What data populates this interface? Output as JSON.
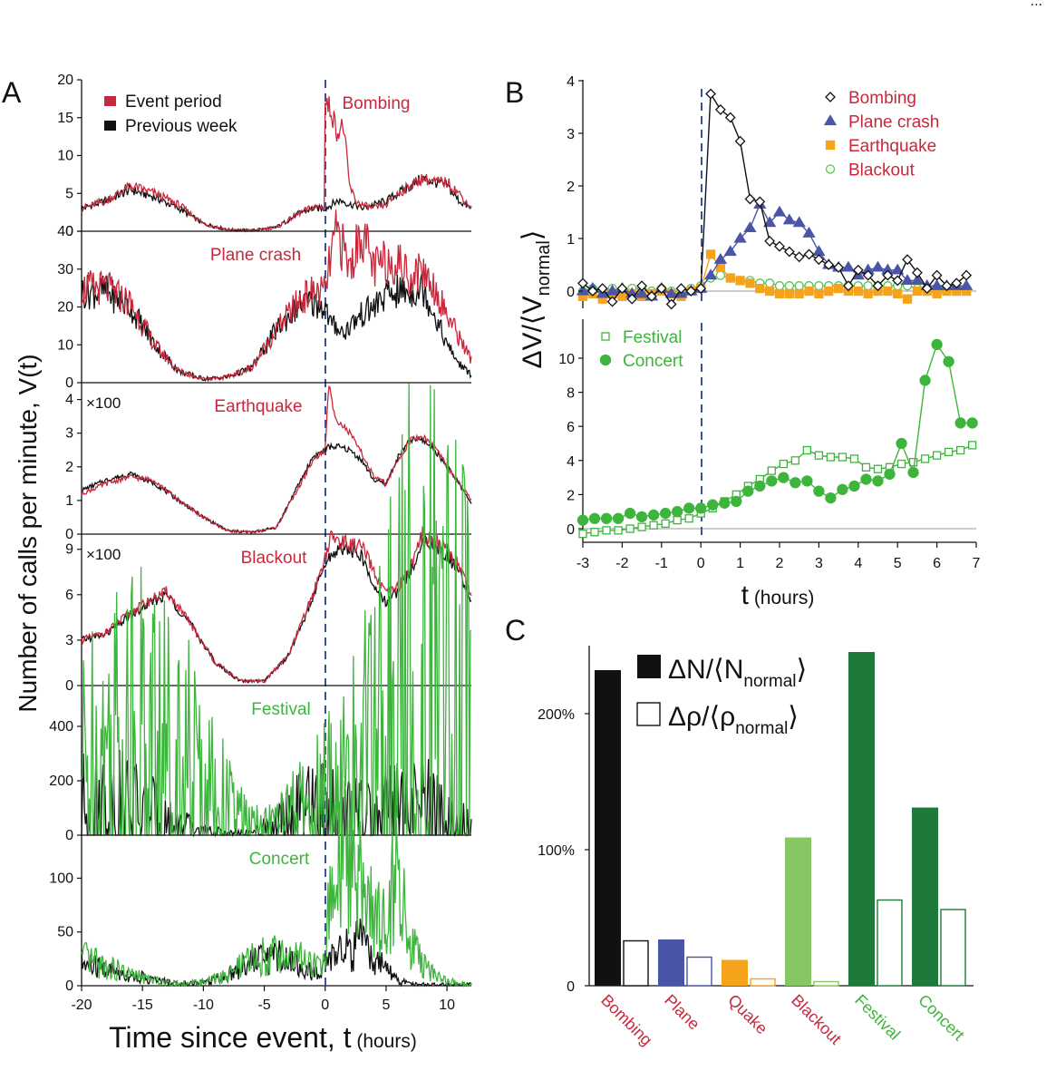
{
  "corner_text": "...",
  "panel_labels": {
    "a": "A",
    "b": "B",
    "c": "C"
  },
  "panel_a": {
    "ylabel": "Number of calls per minute, V(t)",
    "xlabel_main": "Time since event, t",
    "xlabel_unit": " (hours)",
    "x_ticks": [
      "-20",
      "-15",
      "-10",
      "-5",
      "0",
      "5",
      "10"
    ],
    "legend": {
      "event": "Event period",
      "previous": "Previous week"
    },
    "multiplier": "×100",
    "rows": [
      {
        "label": "Bombing",
        "label_color": "red",
        "ymax": 20,
        "ticks": [
          "0",
          "5",
          "10",
          "15",
          "20"
        ],
        "multiplier": false
      },
      {
        "label": "Plane crash",
        "label_color": "red",
        "ymax": 40,
        "ticks": [
          "0",
          "10",
          "20",
          "30",
          "40"
        ],
        "multiplier": false
      },
      {
        "label": "Earthquake",
        "label_color": "red",
        "ymax": 4.5,
        "ticks": [
          "0",
          "1",
          "2",
          "3",
          "4"
        ],
        "multiplier": true
      },
      {
        "label": "Blackout",
        "label_color": "red",
        "ymax": 10,
        "ticks": [
          "0",
          "3",
          "6",
          "9"
        ],
        "multiplier": true
      },
      {
        "label": "Festival",
        "label_color": "green",
        "ymax": 550,
        "ticks": [
          "0",
          "200",
          "400"
        ],
        "multiplier": false
      },
      {
        "label": "Concert",
        "label_color": "green",
        "ymax": 140,
        "ticks": [
          "0",
          "50",
          "100"
        ],
        "multiplier": false
      }
    ]
  },
  "panel_b": {
    "ylabel": "ΔV/⟨V",
    "ylabel_sub": "normal",
    "ylabel_close": "⟩",
    "xlabel_main": "t",
    "xlabel_unit": " (hours)",
    "x_ticks": [
      "-3",
      "-2",
      "-1",
      "0",
      "1",
      "2",
      "3",
      "4",
      "5",
      "6",
      "7"
    ],
    "top_ticks": [
      "0",
      "1",
      "2",
      "3",
      "4"
    ],
    "bottom_ticks": [
      "0",
      "2",
      "4",
      "6",
      "8",
      "10"
    ],
    "legend_top": [
      "Bombing",
      "Plane crash",
      "Earthquake",
      "Blackout"
    ],
    "legend_bottom": [
      "Festival",
      "Concert"
    ]
  },
  "panel_c": {
    "y_ticks": [
      "0",
      "100%",
      "200%"
    ],
    "legend_n": "ΔN/⟨N",
    "legend_n_sub": "normal",
    "legend_rho": "Δρ/⟨ρ",
    "legend_rho_sub": "normal",
    "legend_close": "⟩",
    "categories": [
      "Bombing",
      "Plane",
      "Quake",
      "Blackout",
      "Festival",
      "Concert"
    ]
  },
  "colors": {
    "red": "#c8283c",
    "black": "#111111",
    "green": "#3db53d",
    "blue": "#4a55a8",
    "orange": "#f5a31a",
    "light_green": "#55c455",
    "dark_green": "#1e7a3a",
    "bar_light_green": "#86c764",
    "dashed": "#3a50a0"
  },
  "chart_data": [
    {
      "type": "line",
      "panel": "A",
      "xlabel": "Time since event, t (hours)",
      "ylabel": "Number of calls per minute, V(t)",
      "xlim": [
        -20,
        12
      ],
      "event_time": 0,
      "series_names": [
        "Event period",
        "Previous week"
      ],
      "rows": [
        {
          "event": "Bombing",
          "ylim": [
            0,
            20
          ],
          "x": [
            -20,
            -18,
            -16,
            -14,
            -12,
            -10,
            -8,
            -6,
            -4,
            -2,
            -1,
            -0.05,
            0,
            0.5,
            1,
            1.5,
            2,
            2.5,
            3,
            4,
            5,
            6,
            7,
            8,
            9,
            10,
            11,
            12
          ],
          "event_period": [
            3,
            4,
            6,
            5,
            3.5,
            1,
            0.2,
            0.1,
            0.5,
            2.5,
            3.2,
            3.2,
            17,
            16,
            13,
            14,
            6,
            4,
            3.5,
            3,
            3.5,
            5,
            6,
            7,
            6.5,
            6.5,
            5,
            3
          ],
          "previous_week": [
            3,
            4,
            5.5,
            4.5,
            3,
            1,
            0.2,
            0.1,
            0.5,
            2.5,
            3,
            3,
            3,
            3.5,
            4,
            4,
            3.5,
            3.5,
            3,
            3.5,
            4,
            5,
            6,
            7,
            6.5,
            6,
            4,
            3
          ]
        },
        {
          "event": "Plane crash",
          "ylim": [
            0,
            40
          ],
          "x": [
            -20,
            -18,
            -16,
            -14,
            -12,
            -10,
            -8,
            -6,
            -4,
            -2,
            -1,
            0,
            0.5,
            1,
            1.5,
            2,
            3,
            4,
            5,
            6,
            7,
            8,
            9,
            10,
            11,
            12
          ],
          "event_period": [
            25,
            25,
            21,
            10,
            3,
            1,
            1.5,
            4,
            14,
            22,
            24,
            24,
            34,
            40,
            35,
            30,
            40,
            30,
            32,
            32,
            28,
            30,
            25,
            18,
            12,
            6
          ],
          "previous_week": [
            24,
            24,
            20,
            10,
            3,
            1,
            1.5,
            4,
            14,
            21,
            21,
            20,
            15,
            15,
            13,
            15,
            18,
            20,
            23,
            24,
            24,
            25,
            18,
            10,
            5,
            2
          ]
        },
        {
          "event": "Earthquake",
          "multiplier": 100,
          "ylim": [
            0,
            4.5
          ],
          "x": [
            -20,
            -18,
            -16,
            -14,
            -12,
            -10,
            -8,
            -6,
            -4,
            -2,
            -1,
            0,
            0.3,
            0.6,
            1,
            2,
            3,
            4,
            5,
            6,
            7,
            8,
            9,
            10,
            11,
            12
          ],
          "event_period": [
            1.2,
            1.5,
            1.7,
            1.6,
            1.0,
            0.5,
            0.1,
            0.05,
            0.2,
            1.5,
            2.2,
            2.5,
            4.5,
            3.8,
            3.4,
            3.0,
            2.4,
            1.7,
            1.5,
            2.2,
            2.8,
            2.9,
            2.6,
            2.0,
            1.5,
            1.0
          ],
          "previous_week": [
            1.3,
            1.6,
            1.8,
            1.5,
            1.0,
            0.5,
            0.1,
            0.05,
            0.2,
            1.6,
            2.3,
            2.5,
            2.6,
            2.6,
            2.6,
            2.5,
            2.2,
            1.6,
            1.5,
            2.3,
            2.8,
            2.8,
            2.5,
            2.0,
            1.5,
            0.9
          ]
        },
        {
          "event": "Blackout",
          "multiplier": 100,
          "ylim": [
            0,
            10
          ],
          "x": [
            -20,
            -18,
            -16,
            -14,
            -13,
            -11,
            -9,
            -7,
            -5,
            -3,
            -1,
            0,
            0.5,
            1,
            2,
            3,
            4,
            5,
            6,
            7,
            8,
            9,
            10,
            11,
            12
          ],
          "event_period": [
            3,
            3.5,
            4.8,
            5.8,
            6.2,
            4,
            1.5,
            0.3,
            0.3,
            2,
            6,
            8.5,
            9.8,
            9.6,
            9.3,
            9.2,
            7.5,
            6,
            6.5,
            7.8,
            10,
            9.5,
            9,
            8,
            6
          ],
          "previous_week": [
            3,
            3.4,
            4.6,
            5.6,
            6.0,
            4,
            1.5,
            0.3,
            0.3,
            2,
            5.8,
            8,
            8.6,
            9.0,
            9.0,
            8.5,
            6.5,
            5.5,
            6.2,
            7.5,
            9.6,
            9.3,
            8.6,
            7.5,
            5.5
          ]
        },
        {
          "event": "Festival",
          "ylim": [
            0,
            550
          ],
          "x": [
            -20,
            -18,
            -16,
            -14,
            -12,
            -10,
            -8,
            -6,
            -4,
            -2,
            0,
            1,
            2,
            3,
            4,
            5,
            6,
            7,
            8,
            9,
            10,
            11,
            12
          ],
          "event_period": [
            210,
            270,
            330,
            310,
            240,
            170,
            90,
            30,
            40,
            80,
            130,
            160,
            180,
            220,
            280,
            370,
            430,
            490,
            540,
            510,
            470,
            430,
            380
          ],
          "previous_week": [
            90,
            100,
            90,
            60,
            30,
            10,
            5,
            5,
            30,
            70,
            80,
            70,
            60,
            60,
            50,
            70,
            80,
            85,
            90,
            70,
            50,
            40,
            25
          ]
        },
        {
          "event": "Concert",
          "ylim": [
            0,
            140
          ],
          "x": [
            -20,
            -18,
            -16,
            -14,
            -12,
            -10,
            -8,
            -6,
            -4,
            -2,
            -1,
            0,
            0.3,
            1,
            2,
            3,
            3.5,
            4,
            4.5,
            5,
            5.5,
            6,
            6.5,
            7,
            8,
            9,
            10,
            11,
            12
          ],
          "event_period": [
            25,
            18,
            10,
            5,
            2,
            3,
            10,
            25,
            30,
            25,
            18,
            20,
            70,
            110,
            130,
            95,
            85,
            60,
            75,
            50,
            90,
            125,
            70,
            40,
            20,
            10,
            5,
            2,
            1
          ],
          "previous_week": [
            20,
            15,
            10,
            5,
            2,
            3,
            10,
            25,
            28,
            22,
            10,
            20,
            25,
            30,
            35,
            38,
            30,
            25,
            20,
            15,
            10,
            5,
            3,
            2,
            1,
            1,
            1,
            1,
            1
          ]
        }
      ]
    },
    {
      "type": "line",
      "panel": "B-top",
      "xlabel": "t (hours)",
      "ylabel": "ΔV/⟨V normal⟩",
      "xlim": [
        -3,
        7
      ],
      "ylim": [
        -0.3,
        4
      ],
      "x": [
        -3,
        -2.75,
        -2.5,
        -2.25,
        -2,
        -1.75,
        -1.5,
        -1.25,
        -1,
        -0.75,
        -0.5,
        -0.25,
        0,
        0.25,
        0.5,
        0.75,
        1,
        1.25,
        1.5,
        1.75,
        2,
        2.25,
        2.5,
        2.75,
        3,
        3.25,
        3.5,
        3.75,
        4,
        4.25,
        4.5,
        4.75,
        5,
        5.25,
        5.5,
        5.75,
        6,
        6.25,
        6.5,
        6.75
      ],
      "series": [
        {
          "name": "Bombing",
          "marker": "diamond-open",
          "values": [
            0.15,
            0.0,
            0.05,
            -0.2,
            0.05,
            -0.15,
            0.1,
            -0.1,
            0.05,
            -0.25,
            0.05,
            0.0,
            0.05,
            3.75,
            3.45,
            3.3,
            2.85,
            1.75,
            1.7,
            0.95,
            0.85,
            0.75,
            0.65,
            0.7,
            0.6,
            0.5,
            0.45,
            0.1,
            0.4,
            0.3,
            0.1,
            0.3,
            0.2,
            0.6,
            0.35,
            0.05,
            0.3,
            0.1,
            0.15,
            0.3
          ]
        },
        {
          "name": "Plane crash",
          "values": [
            0.0,
            0.05,
            -0.05,
            0.0,
            0.05,
            -0.05,
            -0.05,
            -0.1,
            0.05,
            -0.05,
            -0.05,
            0.0,
            0.05,
            0.3,
            0.6,
            0.75,
            1.0,
            1.2,
            1.65,
            1.3,
            1.5,
            1.35,
            1.3,
            1.1,
            0.75,
            0.5,
            0.45,
            0.45,
            0.3,
            0.4,
            0.45,
            0.4,
            0.4,
            0.2,
            0.2,
            0.1,
            0.1,
            0.1,
            0.1,
            0.1
          ],
          "marker": "triangle"
        },
        {
          "name": "Earthquake",
          "values": [
            -0.1,
            -0.05,
            -0.15,
            -0.05,
            -0.1,
            -0.05,
            -0.1,
            -0.05,
            0.0,
            -0.05,
            -0.1,
            0.0,
            0.05,
            0.7,
            0.45,
            0.25,
            0.2,
            0.15,
            0.05,
            0.0,
            -0.05,
            -0.05,
            -0.05,
            0.0,
            -0.05,
            0.0,
            0.05,
            0.0,
            0.0,
            -0.05,
            0.0,
            0.0,
            -0.05,
            -0.15,
            0.0,
            0.0,
            -0.05,
            0.0,
            0.0,
            0.0
          ],
          "marker": "square"
        },
        {
          "name": "Blackout",
          "values": [
            0.0,
            0.05,
            0.0,
            0.05,
            0.0,
            0.05,
            0.05,
            0.0,
            0.05,
            0.0,
            0.0,
            0.05,
            0.1,
            0.25,
            0.3,
            0.25,
            0.2,
            0.2,
            0.15,
            0.15,
            0.1,
            0.1,
            0.1,
            0.1,
            0.1,
            0.1,
            0.1,
            0.1,
            0.1,
            0.1,
            0.1,
            0.1,
            0.1,
            0.1,
            0.05,
            0.05,
            0.05,
            0.05,
            0.05,
            0.05
          ],
          "marker": "circle-open"
        }
      ]
    },
    {
      "type": "line",
      "panel": "B-bottom",
      "xlabel": "t (hours)",
      "xlim": [
        -3,
        7
      ],
      "ylim": [
        -0.5,
        12
      ],
      "series": [
        {
          "name": "Festival",
          "marker": "square-open",
          "x": [
            -3,
            -2.7,
            -2.4,
            -2.1,
            -1.8,
            -1.5,
            -1.2,
            -0.9,
            -0.6,
            -0.3,
            0,
            0.3,
            0.6,
            0.9,
            1.2,
            1.5,
            1.8,
            2.1,
            2.4,
            2.7,
            3,
            3.3,
            3.6,
            3.9,
            4.2,
            4.5,
            4.8,
            5.1,
            5.4,
            5.7,
            6,
            6.3,
            6.6,
            6.9
          ],
          "values": [
            -0.3,
            -0.2,
            -0.1,
            -0.1,
            0.0,
            0.1,
            0.2,
            0.3,
            0.5,
            0.6,
            0.9,
            1.2,
            1.6,
            2.0,
            2.5,
            2.9,
            3.4,
            3.8,
            4.0,
            4.6,
            4.3,
            4.2,
            4.2,
            4.1,
            3.6,
            3.5,
            3.6,
            3.8,
            3.9,
            4.1,
            4.3,
            4.5,
            4.6,
            4.9
          ]
        },
        {
          "name": "Concert",
          "marker": "circle",
          "x": [
            -3,
            -2.7,
            -2.4,
            -2.1,
            -1.8,
            -1.5,
            -1.2,
            -0.9,
            -0.6,
            -0.3,
            0,
            0.3,
            0.6,
            0.9,
            1.2,
            1.5,
            1.8,
            2.1,
            2.4,
            2.7,
            3,
            3.3,
            3.6,
            3.9,
            4.2,
            4.5,
            4.8,
            5.1,
            5.4,
            5.7,
            6,
            6.3,
            6.6,
            6.9
          ],
          "values": [
            0.5,
            0.6,
            0.6,
            0.6,
            0.9,
            0.7,
            0.8,
            0.9,
            1.0,
            1.2,
            1.2,
            1.4,
            1.5,
            1.6,
            2.2,
            2.5,
            2.8,
            3.0,
            2.7,
            2.8,
            2.2,
            1.8,
            2.3,
            2.5,
            2.9,
            2.8,
            3.2,
            5.0,
            3.3,
            8.7,
            10.8,
            9.8,
            6.2,
            6.2
          ]
        }
      ]
    },
    {
      "type": "bar",
      "panel": "C",
      "categories": [
        "Bombing",
        "Plane",
        "Quake",
        "Blackout",
        "Festival",
        "Concert"
      ],
      "ylim": [
        0,
        2.5
      ],
      "series": [
        {
          "name": "ΔN/⟨N normal⟩",
          "values": [
            2.32,
            0.34,
            0.19,
            1.09,
            2.48,
            1.31
          ]
        },
        {
          "name": "Δρ/⟨ρ normal⟩",
          "values": [
            0.33,
            0.21,
            0.05,
            0.03,
            0.63,
            0.56
          ]
        }
      ]
    }
  ]
}
